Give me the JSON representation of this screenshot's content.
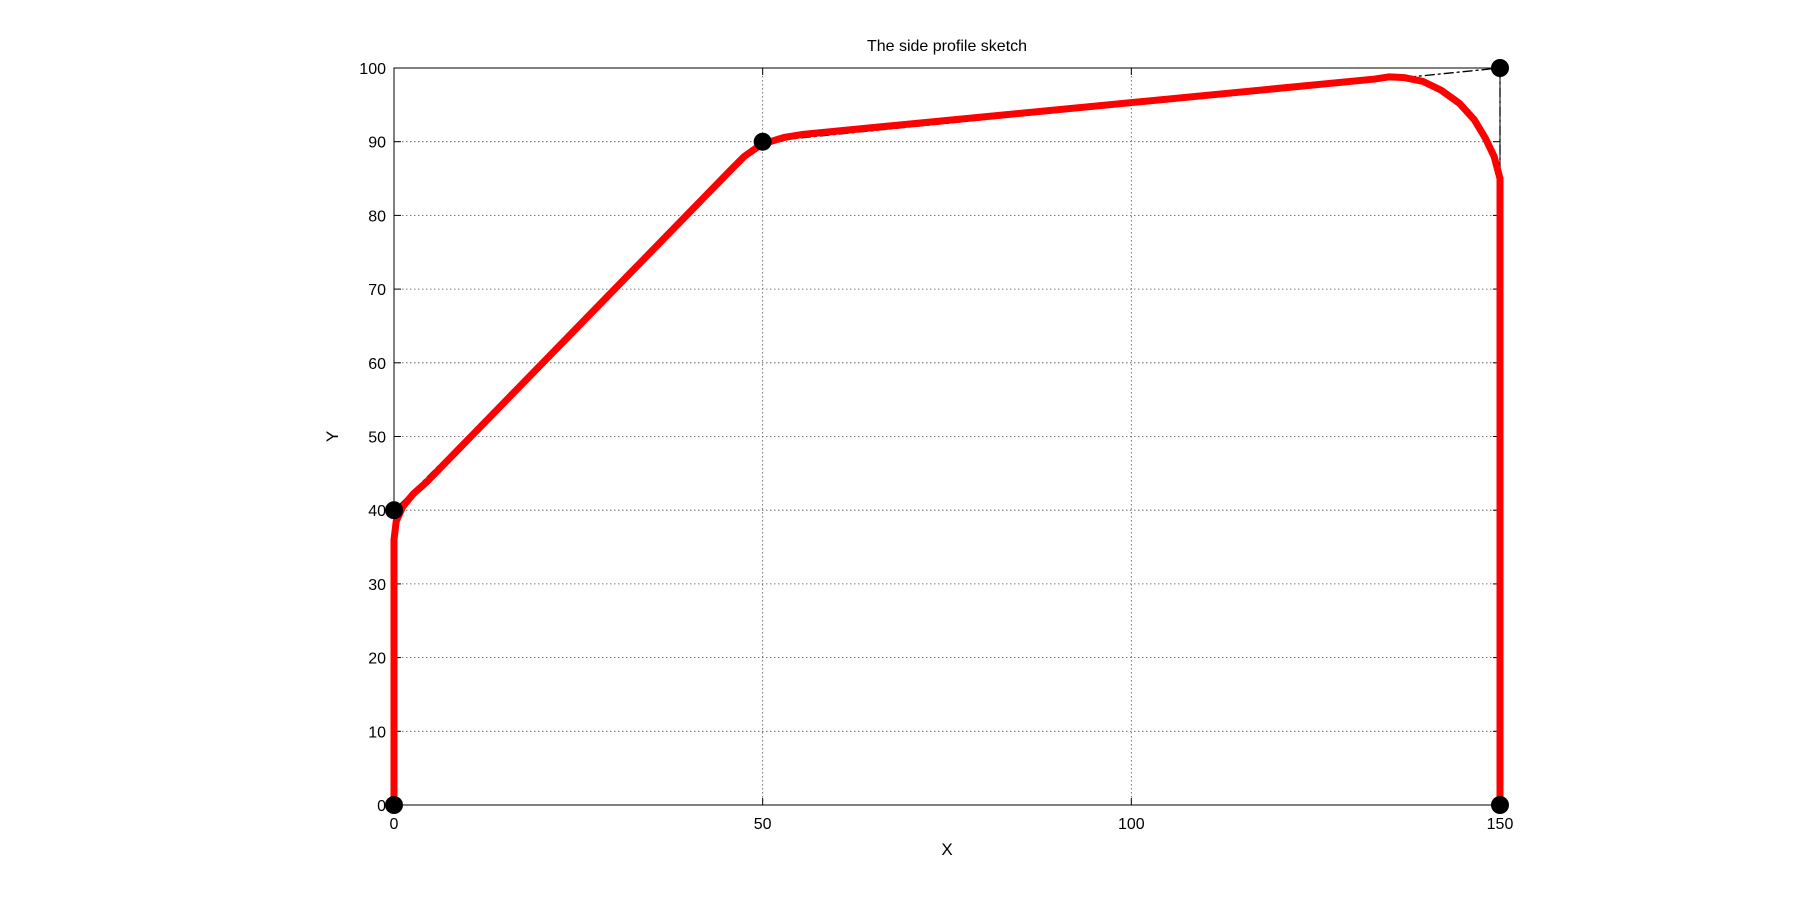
{
  "chart_data": {
    "type": "line",
    "title": "The side profile sketch",
    "xlabel": "X",
    "ylabel": "Y",
    "xlim": [
      0,
      150
    ],
    "ylim": [
      0,
      100
    ],
    "xticks": [
      0,
      50,
      100,
      150
    ],
    "yticks": [
      0,
      10,
      20,
      30,
      40,
      50,
      60,
      70,
      80,
      90,
      100
    ],
    "xtick_labels": [
      "0",
      "50",
      "100",
      "150"
    ],
    "ytick_labels": [
      "0",
      "10",
      "20",
      "30",
      "40",
      "50",
      "60",
      "70",
      "80",
      "90",
      "100"
    ],
    "grid": true,
    "grid_style": "dotted",
    "legend": "none",
    "series": [
      {
        "role": "profile",
        "color": "#ff0000",
        "style": "solid",
        "x": [
          0,
          0,
          0.3,
          1.2,
          2.6,
          4.4,
          46,
          47.5,
          49.2,
          51,
          53,
          55.5,
          133,
          135,
          137,
          139.5,
          142,
          144.5,
          146.5,
          148,
          149.2,
          150,
          150
        ],
        "y": [
          0,
          36,
          38.5,
          40.5,
          42.2,
          43.8,
          86.5,
          88,
          89.2,
          90,
          90.6,
          91,
          98.5,
          98.8,
          98.7,
          98.2,
          97,
          95.2,
          93,
          90.5,
          88,
          85,
          0
        ]
      },
      {
        "role": "control-polygon",
        "color": "#000000",
        "style": "dash-dot",
        "x": [
          0,
          0,
          50,
          150,
          150
        ],
        "y": [
          0,
          40,
          90,
          100,
          0
        ]
      },
      {
        "role": "control-points",
        "color": "#000000",
        "style": "markers",
        "x": [
          0,
          0,
          50,
          150,
          150
        ],
        "y": [
          0,
          40,
          90,
          100,
          0
        ]
      }
    ]
  }
}
